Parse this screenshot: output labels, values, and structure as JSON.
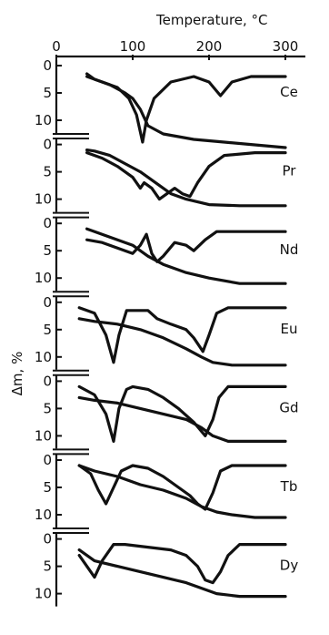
{
  "chart_data": {
    "type": "line",
    "title": "Temperature, °C",
    "xlabel": "Temperature, °C",
    "ylabel": "Δm, %",
    "x_ticks": [
      0,
      100,
      200,
      300
    ],
    "y_ticks": [
      0,
      5,
      10
    ],
    "xlim": [
      0,
      300
    ],
    "ylim": [
      0,
      11
    ],
    "grid": false,
    "legend": "none",
    "panels": [
      {
        "element": "Ce",
        "tg": [
          [
            40,
            1.5
          ],
          [
            50,
            2.5
          ],
          [
            70,
            3.5
          ],
          [
            90,
            5
          ],
          [
            100,
            6
          ],
          [
            110,
            8
          ],
          [
            120,
            11
          ],
          [
            140,
            12.5
          ],
          [
            180,
            13.5
          ],
          [
            220,
            14
          ],
          [
            260,
            14.5
          ],
          [
            300,
            15
          ]
        ],
        "dtg": [
          [
            40,
            2
          ],
          [
            60,
            3
          ],
          [
            80,
            4
          ],
          [
            95,
            6
          ],
          [
            105,
            9
          ],
          [
            113,
            14
          ],
          [
            118,
            10
          ],
          [
            128,
            6
          ],
          [
            150,
            3
          ],
          [
            180,
            2
          ],
          [
            200,
            3
          ],
          [
            215,
            5.5
          ],
          [
            230,
            3
          ],
          [
            255,
            2
          ],
          [
            300,
            2
          ]
        ]
      },
      {
        "element": "Pr",
        "tg": [
          [
            40,
            1
          ],
          [
            50,
            1.2
          ],
          [
            70,
            2
          ],
          [
            90,
            3.5
          ],
          [
            110,
            5
          ],
          [
            130,
            7
          ],
          [
            150,
            9
          ],
          [
            170,
            10
          ],
          [
            200,
            11
          ],
          [
            240,
            11.2
          ],
          [
            300,
            11.2
          ]
        ],
        "dtg": [
          [
            40,
            1.5
          ],
          [
            60,
            2.5
          ],
          [
            80,
            4
          ],
          [
            100,
            6
          ],
          [
            110,
            8
          ],
          [
            115,
            7
          ],
          [
            125,
            8
          ],
          [
            135,
            10
          ],
          [
            145,
            9
          ],
          [
            155,
            8
          ],
          [
            165,
            9
          ],
          [
            175,
            9.5
          ],
          [
            185,
            7
          ],
          [
            200,
            4
          ],
          [
            220,
            2
          ],
          [
            260,
            1.5
          ],
          [
            300,
            1.5
          ]
        ]
      },
      {
        "element": "Nd",
        "tg": [
          [
            40,
            1
          ],
          [
            60,
            2
          ],
          [
            80,
            3
          ],
          [
            100,
            4
          ],
          [
            120,
            6
          ],
          [
            140,
            7.5
          ],
          [
            170,
            9
          ],
          [
            200,
            10
          ],
          [
            240,
            11
          ],
          [
            300,
            11
          ]
        ],
        "dtg": [
          [
            40,
            3
          ],
          [
            60,
            3.5
          ],
          [
            80,
            4.5
          ],
          [
            100,
            5.5
          ],
          [
            110,
            4
          ],
          [
            118,
            2
          ],
          [
            125,
            5.5
          ],
          [
            132,
            7
          ],
          [
            140,
            6
          ],
          [
            155,
            3.5
          ],
          [
            170,
            4
          ],
          [
            180,
            5
          ],
          [
            195,
            3
          ],
          [
            210,
            1.5
          ],
          [
            260,
            1.5
          ],
          [
            300,
            1.5
          ]
        ]
      },
      {
        "element": "Eu",
        "tg": [
          [
            30,
            3
          ],
          [
            50,
            3.5
          ],
          [
            80,
            4
          ],
          [
            110,
            5
          ],
          [
            140,
            6.5
          ],
          [
            170,
            8.5
          ],
          [
            190,
            10
          ],
          [
            205,
            11
          ],
          [
            230,
            11.5
          ],
          [
            300,
            11.5
          ]
        ],
        "dtg": [
          [
            30,
            1
          ],
          [
            50,
            2
          ],
          [
            65,
            6
          ],
          [
            75,
            11
          ],
          [
            82,
            6
          ],
          [
            92,
            1.5
          ],
          [
            100,
            1.5
          ],
          [
            120,
            1.5
          ],
          [
            132,
            3
          ],
          [
            150,
            4
          ],
          [
            170,
            5
          ],
          [
            180,
            6.5
          ],
          [
            192,
            9
          ],
          [
            200,
            6
          ],
          [
            210,
            2
          ],
          [
            225,
            1
          ],
          [
            300,
            1
          ]
        ]
      },
      {
        "element": "Gd",
        "tg": [
          [
            30,
            3
          ],
          [
            50,
            3.5
          ],
          [
            80,
            4
          ],
          [
            110,
            5
          ],
          [
            140,
            6
          ],
          [
            170,
            7
          ],
          [
            190,
            8.5
          ],
          [
            205,
            10
          ],
          [
            225,
            11
          ],
          [
            300,
            11
          ]
        ],
        "dtg": [
          [
            30,
            1
          ],
          [
            50,
            2.5
          ],
          [
            65,
            6
          ],
          [
            75,
            11
          ],
          [
            82,
            5
          ],
          [
            92,
            1.5
          ],
          [
            100,
            1
          ],
          [
            120,
            1.5
          ],
          [
            140,
            3
          ],
          [
            160,
            5
          ],
          [
            180,
            7.5
          ],
          [
            195,
            10
          ],
          [
            205,
            7
          ],
          [
            213,
            3
          ],
          [
            225,
            1
          ],
          [
            300,
            1
          ]
        ]
      },
      {
        "element": "Tb",
        "tg": [
          [
            30,
            1
          ],
          [
            50,
            2
          ],
          [
            80,
            3
          ],
          [
            110,
            4.5
          ],
          [
            140,
            5.5
          ],
          [
            170,
            7
          ],
          [
            190,
            8.5
          ],
          [
            210,
            9.5
          ],
          [
            230,
            10
          ],
          [
            260,
            10.5
          ],
          [
            300,
            10.5
          ]
        ],
        "dtg": [
          [
            30,
            1
          ],
          [
            45,
            2.5
          ],
          [
            55,
            5.5
          ],
          [
            65,
            8
          ],
          [
            75,
            5
          ],
          [
            85,
            2
          ],
          [
            100,
            1
          ],
          [
            120,
            1.5
          ],
          [
            140,
            3
          ],
          [
            160,
            5
          ],
          [
            175,
            6.5
          ],
          [
            185,
            8
          ],
          [
            195,
            9
          ],
          [
            205,
            6
          ],
          [
            215,
            2
          ],
          [
            230,
            1
          ],
          [
            300,
            1
          ]
        ]
      },
      {
        "element": "Dy",
        "tg": [
          [
            30,
            2
          ],
          [
            50,
            4
          ],
          [
            80,
            5
          ],
          [
            110,
            6
          ],
          [
            140,
            7
          ],
          [
            170,
            8
          ],
          [
            190,
            9
          ],
          [
            210,
            10
          ],
          [
            240,
            10.5
          ],
          [
            300,
            10.5
          ]
        ],
        "dtg": [
          [
            30,
            3
          ],
          [
            40,
            5
          ],
          [
            50,
            7
          ],
          [
            60,
            4
          ],
          [
            75,
            1
          ],
          [
            90,
            1
          ],
          [
            120,
            1.5
          ],
          [
            150,
            2
          ],
          [
            170,
            3
          ],
          [
            185,
            5
          ],
          [
            195,
            7.5
          ],
          [
            205,
            8
          ],
          [
            215,
            6
          ],
          [
            225,
            3
          ],
          [
            240,
            1
          ],
          [
            300,
            1
          ]
        ]
      }
    ]
  }
}
